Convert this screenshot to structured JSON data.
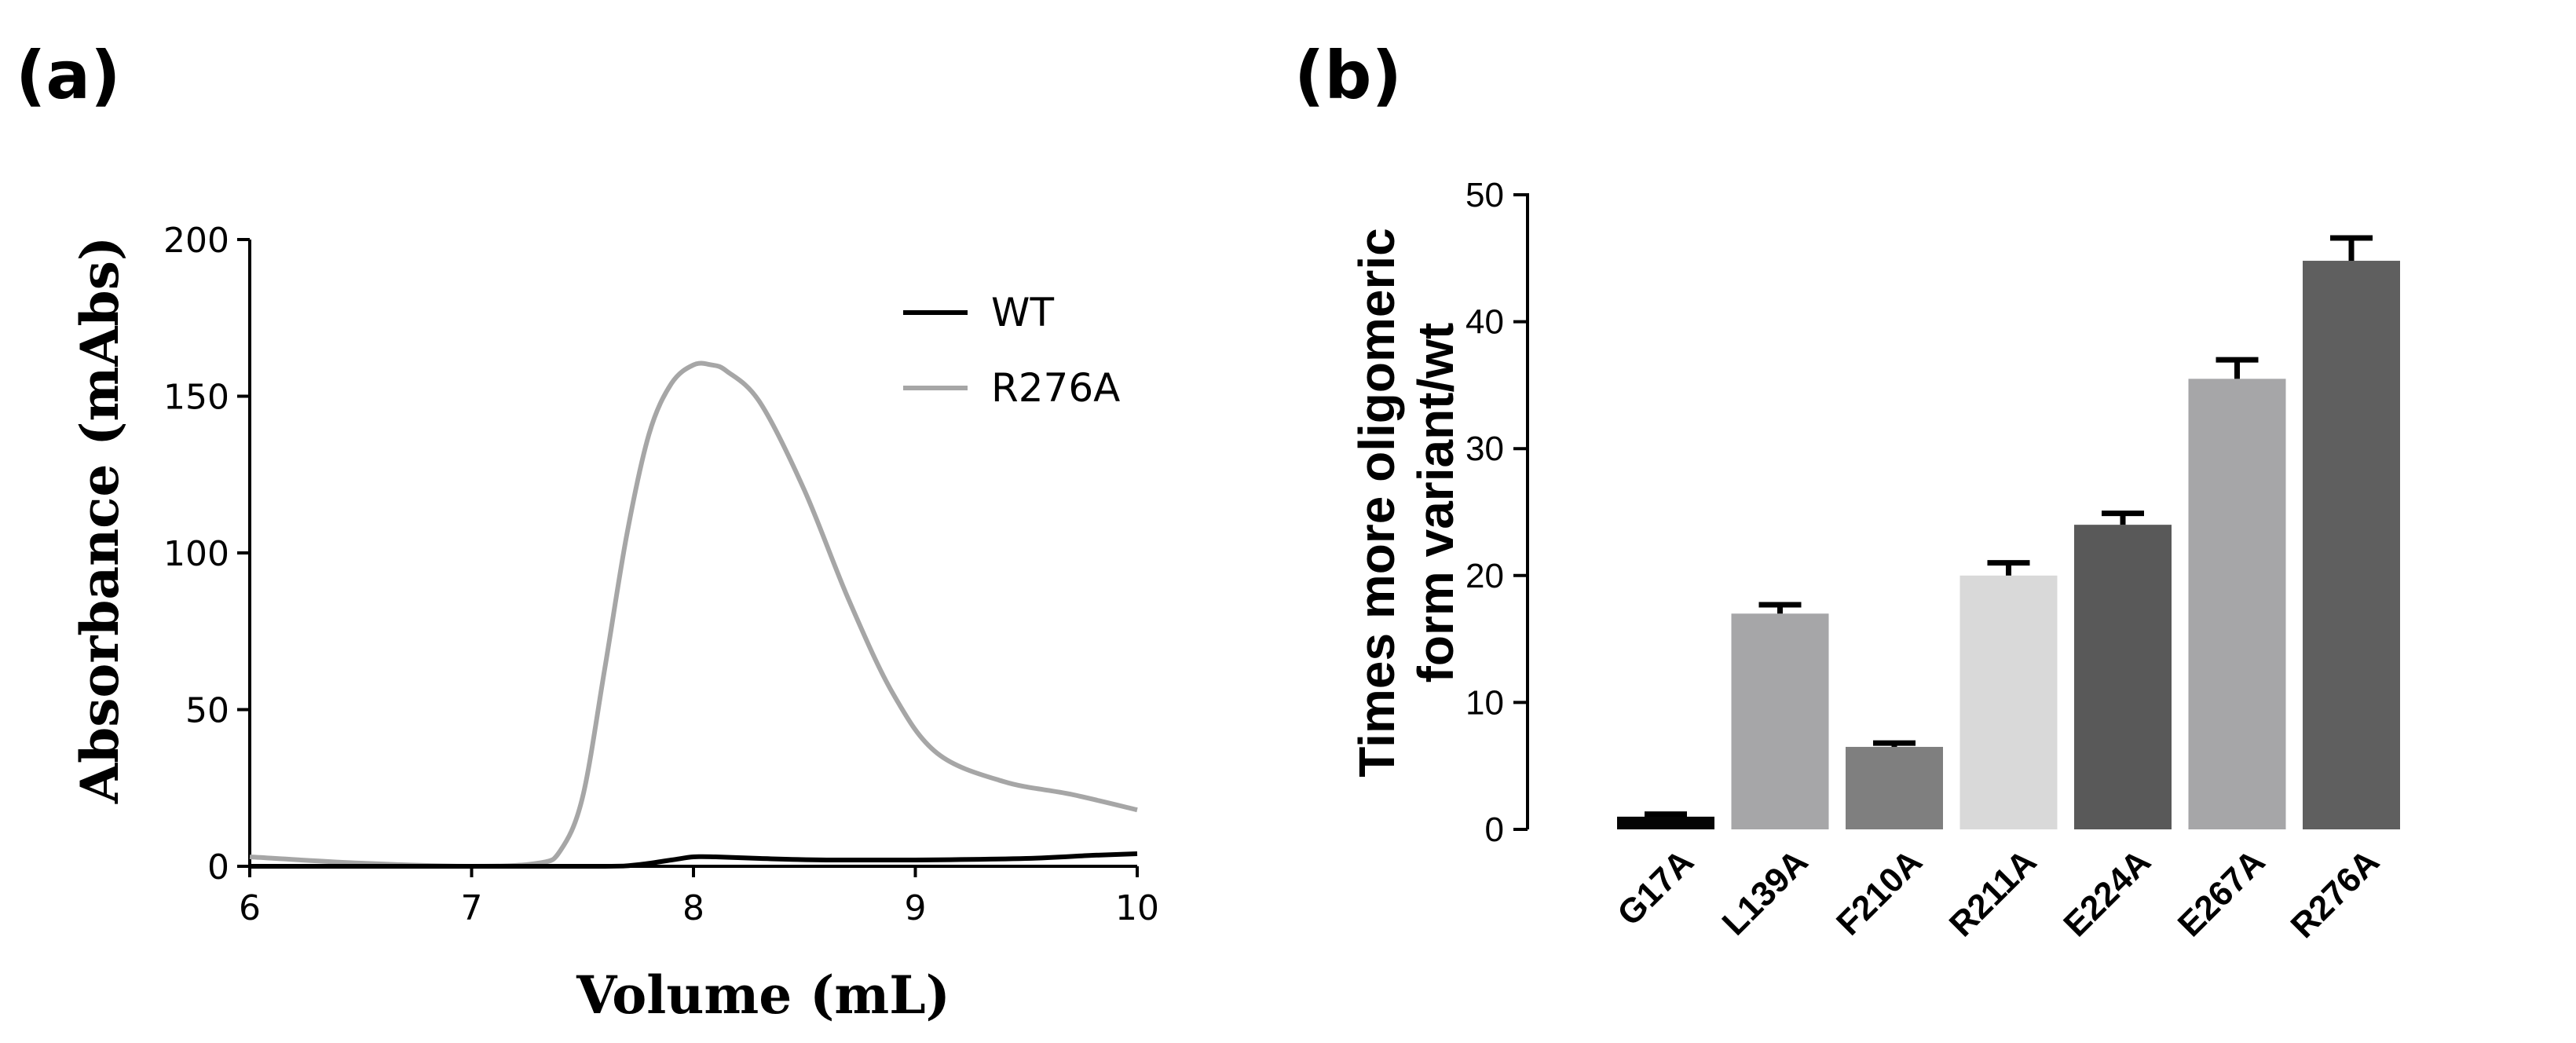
{
  "panels": {
    "a_label": "(a)",
    "b_label": "(b)"
  },
  "chart_data": [
    {
      "type": "line",
      "panel": "(a)",
      "xlabel": "Volume (mL)",
      "ylabel": "Absorbance (mAbs)",
      "xlim": [
        6,
        10
      ],
      "ylim": [
        0,
        200
      ],
      "xticks": [
        6,
        7,
        8,
        9,
        10
      ],
      "yticks": [
        0,
        50,
        100,
        150,
        200
      ],
      "grid": false,
      "legend": "top-right",
      "series": [
        {
          "name": "WT",
          "color": "#000000",
          "x": [
            6.0,
            7.0,
            7.6,
            7.75,
            7.9,
            8.0,
            8.1,
            8.3,
            8.6,
            9.0,
            9.5,
            9.8,
            10.0
          ],
          "y": [
            0,
            0,
            0,
            0.5,
            2,
            3,
            3,
            2.5,
            2,
            2,
            2.5,
            3.5,
            4
          ]
        },
        {
          "name": "R276A",
          "color": "#a6a6a6",
          "x": [
            6.0,
            6.5,
            7.0,
            7.3,
            7.4,
            7.5,
            7.6,
            7.7,
            7.8,
            7.9,
            8.0,
            8.08,
            8.15,
            8.3,
            8.5,
            8.7,
            8.9,
            9.1,
            9.4,
            9.7,
            10.0
          ],
          "y": [
            3,
            1,
            0,
            1,
            5,
            22,
            63,
            106,
            138,
            154,
            160,
            160,
            158,
            148,
            120,
            85,
            55,
            36,
            27,
            23,
            18
          ]
        }
      ]
    },
    {
      "type": "bar",
      "panel": "(b)",
      "ylabel_line1": "Times more oligomeric",
      "ylabel_line2": "form variant/wt",
      "ylim": [
        0,
        50
      ],
      "yticks": [
        0,
        10,
        20,
        30,
        40,
        50
      ],
      "categories": [
        "G17A",
        "L139A",
        "F210A",
        "R211A",
        "E224A",
        "E267A",
        "R276A"
      ],
      "values": [
        1,
        17,
        6.5,
        20,
        24,
        35.5,
        44.8
      ],
      "errors": [
        0.2,
        0.7,
        0.3,
        1.0,
        0.9,
        1.5,
        1.8
      ],
      "colors": [
        "#050505",
        "#a6a6a8",
        "#7f7f7f",
        "#d9d9d9",
        "#595959",
        "#a6a6a8",
        "#5f5f5f"
      ],
      "grid": false
    }
  ]
}
